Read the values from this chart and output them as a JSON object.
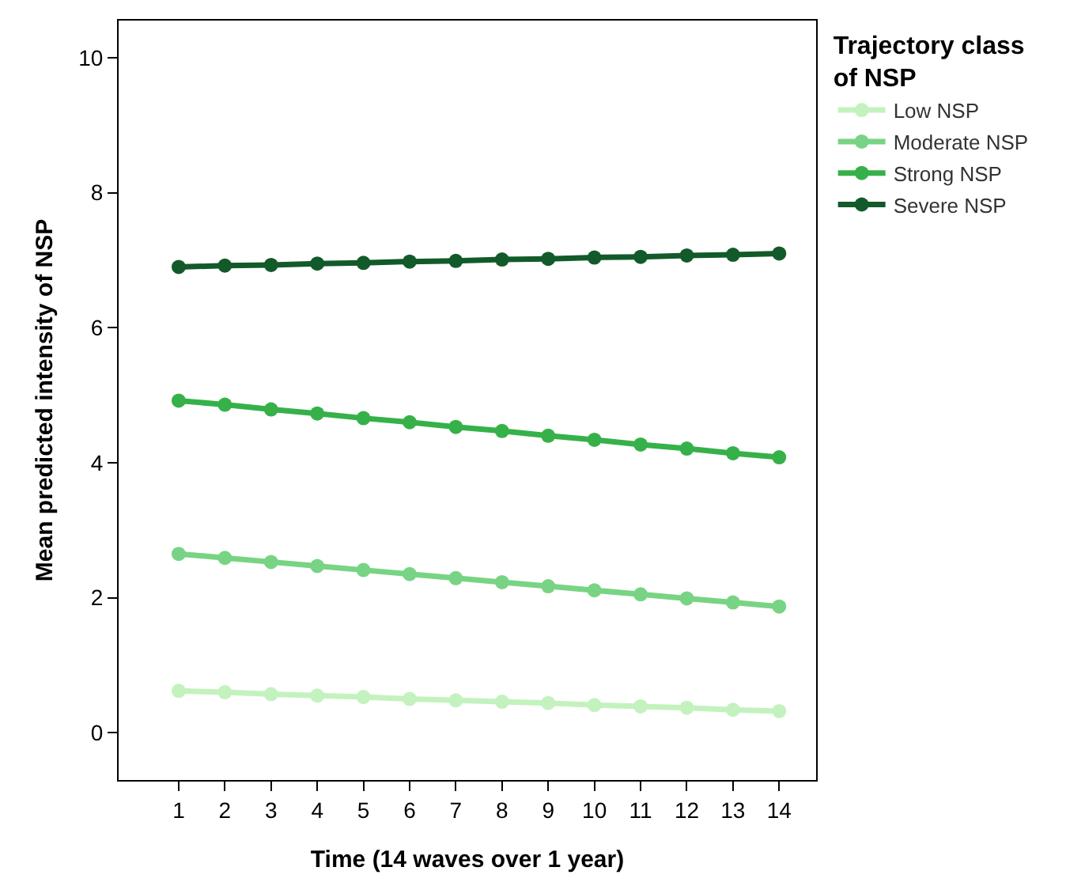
{
  "chart_data": {
    "type": "line",
    "xlabel": "Time (14 waves over 1 year)",
    "ylabel": "Mean predicted intensity of NSP",
    "legend_title": "Trajectory class of NSP",
    "x": [
      1,
      2,
      3,
      4,
      5,
      6,
      7,
      8,
      9,
      10,
      11,
      12,
      13,
      14
    ],
    "series": [
      {
        "name": "Low NSP",
        "color": "#c4f2bf",
        "values": [
          0.62,
          0.6,
          0.57,
          0.55,
          0.53,
          0.5,
          0.48,
          0.46,
          0.44,
          0.41,
          0.39,
          0.37,
          0.34,
          0.32
        ]
      },
      {
        "name": "Moderate NSP",
        "color": "#78d484",
        "values": [
          2.65,
          2.59,
          2.53,
          2.47,
          2.41,
          2.35,
          2.29,
          2.23,
          2.17,
          2.11,
          2.05,
          1.99,
          1.93,
          1.87
        ]
      },
      {
        "name": "Strong NSP",
        "color": "#36b14a",
        "values": [
          4.92,
          4.86,
          4.79,
          4.73,
          4.66,
          4.6,
          4.53,
          4.47,
          4.4,
          4.34,
          4.27,
          4.21,
          4.14,
          4.08
        ]
      },
      {
        "name": "Severe NSP",
        "color": "#135a2a",
        "values": [
          6.9,
          6.92,
          6.93,
          6.95,
          6.96,
          6.98,
          6.99,
          7.01,
          7.02,
          7.04,
          7.05,
          7.07,
          7.08,
          7.1
        ]
      }
    ],
    "xlim": [
      -0.3,
      14.8
    ],
    "xticks": [
      1,
      2,
      3,
      4,
      5,
      6,
      7,
      8,
      9,
      10,
      11,
      12,
      13,
      14
    ],
    "ylim": [
      -0.7,
      10.55
    ],
    "yticks": [
      0,
      2,
      4,
      6,
      8,
      10
    ],
    "legend": "top right",
    "marker": "circle",
    "line_style": "solid"
  }
}
